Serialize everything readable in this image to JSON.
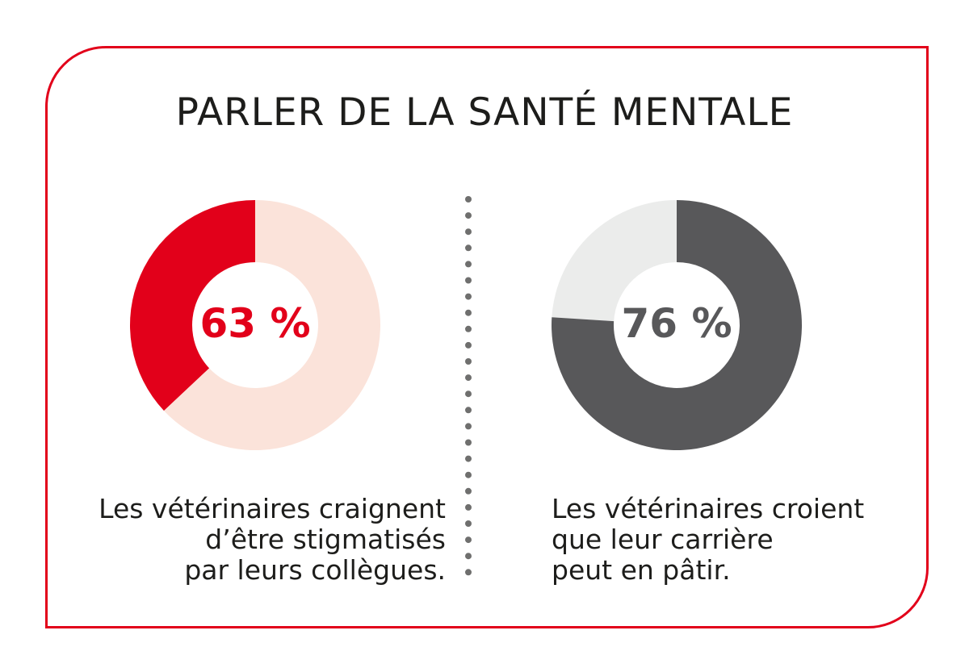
{
  "title": "PARLER DE LA SANTÉ MENTALE",
  "colors": {
    "frame": "#e2001a",
    "red": "#e2001a",
    "pink": "#fbe3da",
    "dark": "#58585a",
    "light": "#ebeceb",
    "divider": "#6f6f6e"
  },
  "chart_data": [
    {
      "type": "pie",
      "variant": "donut",
      "center_label": "63 %",
      "value": 63,
      "segments": [
        {
          "value": 37,
          "color": "#e2001a"
        },
        {
          "value": 63,
          "color": "#fbe3da"
        }
      ],
      "label_color": "#e2001a",
      "caption": [
        "Les vétérinaires craignent",
        "d’être stigmatisés",
        "par leurs collègues."
      ]
    },
    {
      "type": "pie",
      "variant": "donut",
      "center_label": "76 %",
      "value": 76,
      "segments": [
        {
          "value": 24,
          "color": "#ebeceb"
        },
        {
          "value": 76,
          "color": "#58585a"
        }
      ],
      "label_color": "#58585a",
      "caption": [
        "Les vétérinaires croient",
        "que leur carrière",
        "peut en pâtir."
      ]
    }
  ]
}
